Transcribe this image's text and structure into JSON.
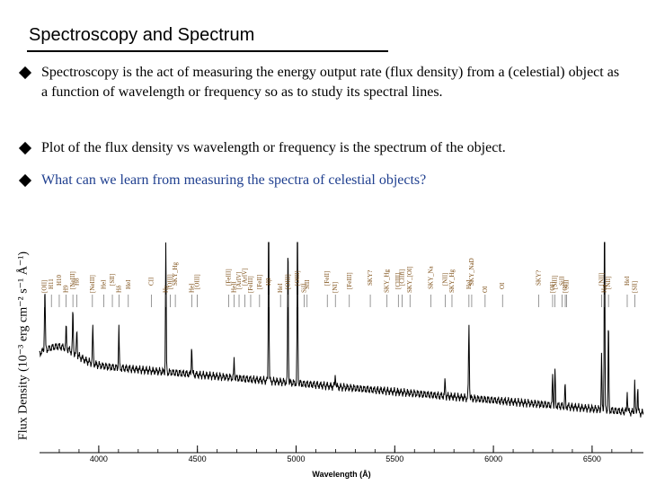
{
  "slide": {
    "title": "Spectroscopy and Spectrum",
    "bullets": [
      {
        "text": "Spectroscopy is the act of measuring the energy output rate (flux density) from a (celestial) object as a function of wavelength or frequency so as to study its spectral lines.",
        "color": "#000000"
      },
      {
        "text": "Plot of the flux density vs wavelength or frequency is the spectrum of the object.",
        "color": "#000000"
      },
      {
        "text": "What can we learn from measuring the spectra of celestial objects?",
        "color": "#1f3f8f"
      }
    ]
  },
  "figure": {
    "ylabel": "Flux Density (10⁻³ erg cm⁻² s⁻¹ Å⁻¹)",
    "xlabel": "Wavelength (Å)",
    "xticks": [
      4000,
      4500,
      5000,
      5500,
      6000,
      6500
    ],
    "xlim": [
      3700,
      6760
    ],
    "line_labels": [
      {
        "wl": 3725,
        "text": "[OII]"
      },
      {
        "wl": 3760,
        "text": "H11"
      },
      {
        "wl": 3800,
        "text": "H10"
      },
      {
        "wl": 3835,
        "text": "H9"
      },
      {
        "wl": 3869,
        "text": "[NeIII]"
      },
      {
        "wl": 3889,
        "text": "H8"
      },
      {
        "wl": 3968,
        "text": "[NeIII]"
      },
      {
        "wl": 4026,
        "text": "HeI"
      },
      {
        "wl": 4069,
        "text": "[SII]"
      },
      {
        "wl": 4102,
        "text": "Hδ"
      },
      {
        "wl": 4150,
        "text": "HeI"
      },
      {
        "wl": 4267,
        "text": "CII"
      },
      {
        "wl": 4340,
        "text": "Hγ"
      },
      {
        "wl": 4363,
        "text": "[OIII]"
      },
      {
        "wl": 4388,
        "text": "SKY_Hg"
      },
      {
        "wl": 4471,
        "text": "HeI"
      },
      {
        "wl": 4500,
        "text": "[OIII]"
      },
      {
        "wl": 4658,
        "text": "[FeIII]"
      },
      {
        "wl": 4686,
        "text": "HeII"
      },
      {
        "wl": 4711,
        "text": "[ArIV]"
      },
      {
        "wl": 4740,
        "text": "[ArIV]"
      },
      {
        "wl": 4770,
        "text": "[FeIII]"
      },
      {
        "wl": 4815,
        "text": "[FeII]"
      },
      {
        "wl": 4861,
        "text": "Hβ"
      },
      {
        "wl": 4921,
        "text": "HeI"
      },
      {
        "wl": 4959,
        "text": "[OIII]"
      },
      {
        "wl": 5007,
        "text": "[OIII]"
      },
      {
        "wl": 5041,
        "text": "SiII"
      },
      {
        "wl": 5056,
        "text": "SiII"
      },
      {
        "wl": 5158,
        "text": "[FeII]"
      },
      {
        "wl": 5199,
        "text": "[NI]"
      },
      {
        "wl": 5270,
        "text": "[FeIII]"
      },
      {
        "wl": 5376,
        "text": "SKY?"
      },
      {
        "wl": 5461,
        "text": "SKY_Hg"
      },
      {
        "wl": 5518,
        "text": "[ClIII]"
      },
      {
        "wl": 5538,
        "text": "[ClIII]"
      },
      {
        "wl": 5577,
        "text": "SKY_[OI]"
      },
      {
        "wl": 5684,
        "text": "SKY_Na"
      },
      {
        "wl": 5755,
        "text": "[NII]"
      },
      {
        "wl": 5790,
        "text": "SKY_Hg"
      },
      {
        "wl": 5876,
        "text": "HeI"
      },
      {
        "wl": 5890,
        "text": "SKY_NaD"
      },
      {
        "wl": 5958,
        "text": "OI"
      },
      {
        "wl": 6046,
        "text": "OI"
      },
      {
        "wl": 6230,
        "text": "SKY?"
      },
      {
        "wl": 6300,
        "text": "[OI]"
      },
      {
        "wl": 6312,
        "text": "[SIII]"
      },
      {
        "wl": 6347,
        "text": "SiII"
      },
      {
        "wl": 6364,
        "text": "[OI]"
      },
      {
        "wl": 6371,
        "text": "SiII"
      },
      {
        "wl": 6548,
        "text": "[NII]"
      },
      {
        "wl": 6563,
        "text": "Hα"
      },
      {
        "wl": 6583,
        "text": "[NII]"
      },
      {
        "wl": 6678,
        "text": "HeI"
      },
      {
        "wl": 6716,
        "text": "[SII]"
      }
    ]
  }
}
